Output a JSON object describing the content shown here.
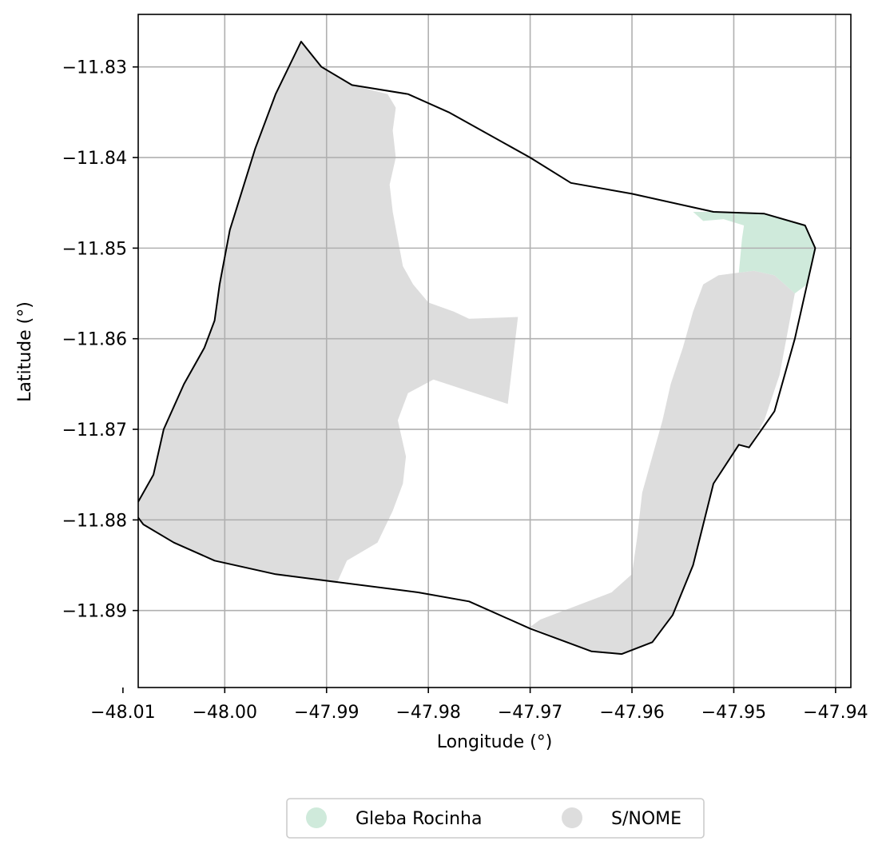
{
  "chart_data": {
    "type": "map",
    "xlabel": "Longitude (°)",
    "ylabel": "Latitude (°)",
    "xlim": [
      -48.0085,
      -47.9385
    ],
    "ylim": [
      -11.8985,
      -11.8242
    ],
    "grid": true,
    "x_ticks": [
      {
        "value": -48.01,
        "label": "−48.01"
      },
      {
        "value": -48.0,
        "label": "−48.00"
      },
      {
        "value": -47.99,
        "label": "−47.99"
      },
      {
        "value": -47.98,
        "label": "−47.98"
      },
      {
        "value": -47.97,
        "label": "−47.97"
      },
      {
        "value": -47.96,
        "label": "−47.96"
      },
      {
        "value": -47.95,
        "label": "−47.95"
      },
      {
        "value": -47.94,
        "label": "−47.94"
      }
    ],
    "y_ticks": [
      {
        "value": -11.83,
        "label": "−11.83"
      },
      {
        "value": -11.84,
        "label": "−11.84"
      },
      {
        "value": -11.85,
        "label": "−11.85"
      },
      {
        "value": -11.86,
        "label": "−11.86"
      },
      {
        "value": -11.87,
        "label": "−11.87"
      },
      {
        "value": -11.88,
        "label": "−11.88"
      },
      {
        "value": -11.89,
        "label": "−11.89"
      }
    ],
    "legend": {
      "placement": "bottom-center",
      "entries": [
        {
          "label": "Gleba Rocinha",
          "color": "#cfeadb"
        },
        {
          "label": "S/NOME",
          "color": "#dddddd"
        }
      ]
    },
    "boundary_color": "#000000",
    "boundary": [
      [
        -47.9925,
        -11.8272
      ],
      [
        -47.9905,
        -11.83
      ],
      [
        -47.9875,
        -11.832
      ],
      [
        -47.982,
        -11.833
      ],
      [
        -47.978,
        -11.835
      ],
      [
        -47.97,
        -11.84
      ],
      [
        -47.966,
        -11.8428
      ],
      [
        -47.96,
        -11.844
      ],
      [
        -47.952,
        -11.846
      ],
      [
        -47.947,
        -11.8462
      ],
      [
        -47.943,
        -11.8475
      ],
      [
        -47.942,
        -11.85
      ],
      [
        -47.944,
        -11.86
      ],
      [
        -47.946,
        -11.868
      ],
      [
        -47.9485,
        -11.872
      ],
      [
        -47.9495,
        -11.8717
      ],
      [
        -47.952,
        -11.876
      ],
      [
        -47.954,
        -11.885
      ],
      [
        -47.956,
        -11.8905
      ],
      [
        -47.958,
        -11.8935
      ],
      [
        -47.961,
        -11.8948
      ],
      [
        -47.964,
        -11.8945
      ],
      [
        -47.97,
        -11.892
      ],
      [
        -47.976,
        -11.889
      ],
      [
        -47.981,
        -11.888
      ],
      [
        -47.995,
        -11.886
      ],
      [
        -48.001,
        -11.8845
      ],
      [
        -48.005,
        -11.8825
      ],
      [
        -48.008,
        -11.8805
      ],
      [
        -48.009,
        -11.879
      ],
      [
        -48.007,
        -11.875
      ],
      [
        -48.006,
        -11.87
      ],
      [
        -48.004,
        -11.865
      ],
      [
        -48.002,
        -11.861
      ],
      [
        -48.001,
        -11.858
      ],
      [
        -48.0005,
        -11.854
      ],
      [
        -47.9995,
        -11.848
      ],
      [
        -47.997,
        -11.839
      ],
      [
        -47.995,
        -11.833
      ],
      [
        -47.9925,
        -11.8272
      ]
    ],
    "regions": [
      {
        "name": "S/NOME",
        "color": "#dddddd",
        "polygons": [
          [
            [
              -47.9925,
              -11.8272
            ],
            [
              -47.9905,
              -11.83
            ],
            [
              -47.9875,
              -11.832
            ],
            [
              -47.984,
              -11.833
            ],
            [
              -47.9832,
              -11.8345
            ],
            [
              -47.9835,
              -11.837
            ],
            [
              -47.9832,
              -11.84
            ],
            [
              -47.9838,
              -11.843
            ],
            [
              -47.9835,
              -11.846
            ],
            [
              -47.983,
              -11.849
            ],
            [
              -47.9825,
              -11.852
            ],
            [
              -47.9815,
              -11.854
            ],
            [
              -47.98,
              -11.856
            ],
            [
              -47.9775,
              -11.857
            ],
            [
              -47.976,
              -11.8578
            ],
            [
              -47.9712,
              -11.8576
            ],
            [
              -47.9722,
              -11.8672
            ],
            [
              -47.9795,
              -11.8645
            ],
            [
              -47.982,
              -11.866
            ],
            [
              -47.983,
              -11.869
            ],
            [
              -47.9822,
              -11.873
            ],
            [
              -47.9825,
              -11.876
            ],
            [
              -47.9835,
              -11.879
            ],
            [
              -47.985,
              -11.8825
            ],
            [
              -47.988,
              -11.8845
            ],
            [
              -47.989,
              -11.887
            ],
            [
              -47.995,
              -11.886
            ],
            [
              -48.001,
              -11.8845
            ],
            [
              -48.005,
              -11.8825
            ],
            [
              -48.008,
              -11.8805
            ],
            [
              -48.009,
              -11.879
            ],
            [
              -48.007,
              -11.875
            ],
            [
              -48.006,
              -11.87
            ],
            [
              -48.004,
              -11.865
            ],
            [
              -48.002,
              -11.861
            ],
            [
              -48.001,
              -11.858
            ],
            [
              -48.0005,
              -11.854
            ],
            [
              -47.9995,
              -11.848
            ],
            [
              -47.997,
              -11.839
            ],
            [
              -47.995,
              -11.833
            ],
            [
              -47.9925,
              -11.8272
            ]
          ],
          [
            [
              -47.9495,
              -11.8527
            ],
            [
              -47.948,
              -11.8525
            ],
            [
              -47.946,
              -11.853
            ],
            [
              -47.944,
              -11.855
            ],
            [
              -47.9455,
              -11.864
            ],
            [
              -47.947,
              -11.869
            ],
            [
              -47.9485,
              -11.872
            ],
            [
              -47.9495,
              -11.8717
            ],
            [
              -47.952,
              -11.876
            ],
            [
              -47.954,
              -11.885
            ],
            [
              -47.956,
              -11.8905
            ],
            [
              -47.958,
              -11.8935
            ],
            [
              -47.961,
              -11.8948
            ],
            [
              -47.964,
              -11.8945
            ],
            [
              -47.97,
              -11.8918
            ],
            [
              -47.969,
              -11.891
            ],
            [
              -47.962,
              -11.888
            ],
            [
              -47.96,
              -11.886
            ],
            [
              -47.9595,
              -11.882
            ],
            [
              -47.959,
              -11.877
            ],
            [
              -47.958,
              -11.873
            ],
            [
              -47.957,
              -11.869
            ],
            [
              -47.9562,
              -11.865
            ],
            [
              -47.955,
              -11.861
            ],
            [
              -47.954,
              -11.857
            ],
            [
              -47.953,
              -11.854
            ],
            [
              -47.9515,
              -11.853
            ],
            [
              -47.9495,
              -11.8527
            ]
          ]
        ]
      },
      {
        "name": "Gleba Rocinha",
        "color": "#cfeadb",
        "polygons": [
          [
            [
              -47.954,
              -11.846
            ],
            [
              -47.952,
              -11.846
            ],
            [
              -47.947,
              -11.8462
            ],
            [
              -47.943,
              -11.8475
            ],
            [
              -47.942,
              -11.85
            ],
            [
              -47.9428,
              -11.854
            ],
            [
              -47.944,
              -11.855
            ],
            [
              -47.946,
              -11.853
            ],
            [
              -47.948,
              -11.8525
            ],
            [
              -47.9495,
              -11.8527
            ],
            [
              -47.9492,
              -11.849
            ],
            [
              -47.949,
              -11.8475
            ],
            [
              -47.951,
              -11.8468
            ],
            [
              -47.953,
              -11.847
            ],
            [
              -47.954,
              -11.846
            ]
          ]
        ]
      }
    ]
  }
}
